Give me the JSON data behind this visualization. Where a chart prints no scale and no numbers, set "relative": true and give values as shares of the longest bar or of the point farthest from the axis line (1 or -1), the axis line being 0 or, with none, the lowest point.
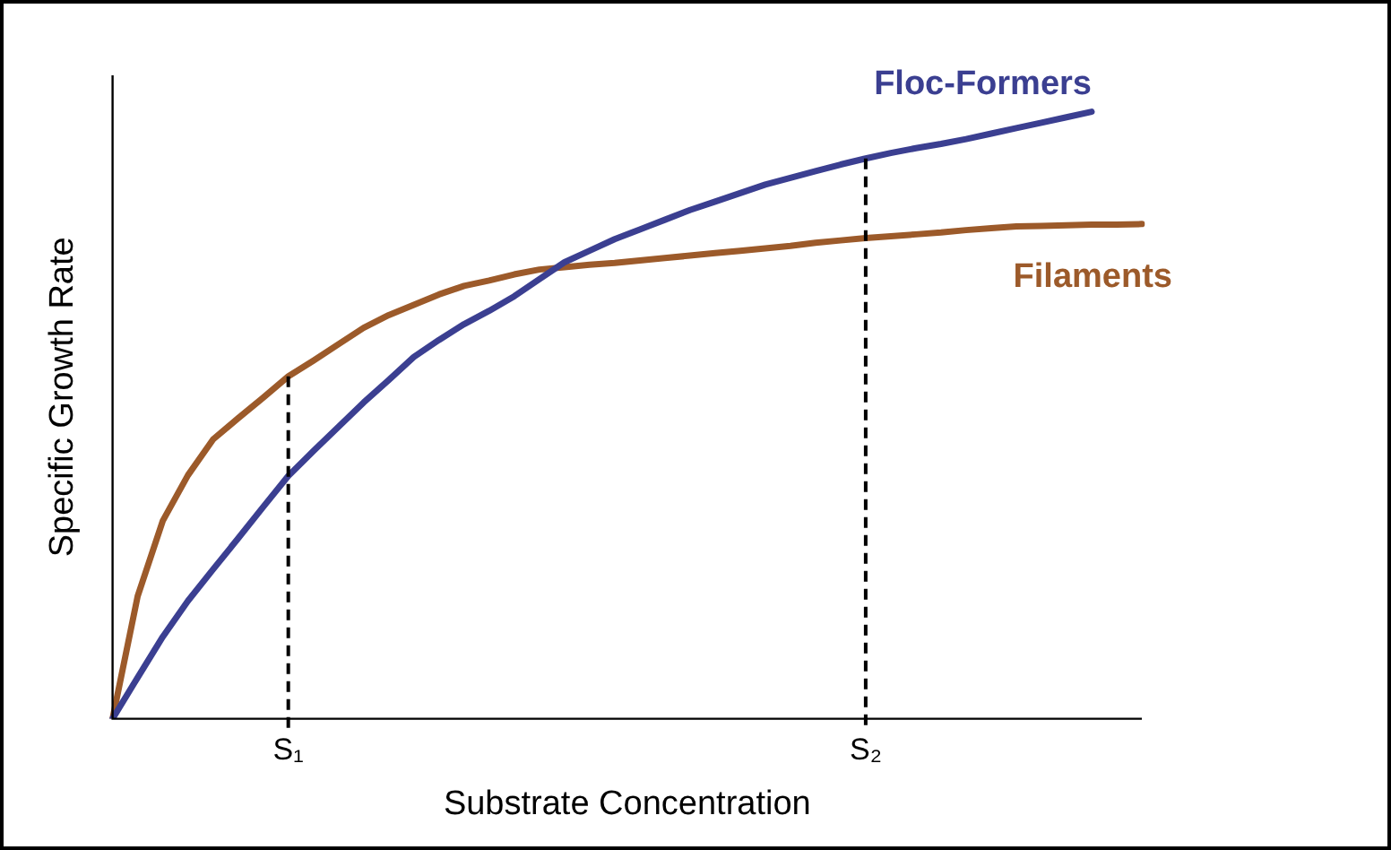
{
  "chart_data": {
    "type": "line",
    "relative": true,
    "xlabel": "Substrate Concentration",
    "ylabel": "Specific Growth Rate",
    "categories": [
      null,
      null,
      null,
      null,
      null,
      null,
      null,
      "S₁",
      null,
      null,
      null,
      null,
      null,
      null,
      null,
      null,
      null,
      null,
      null,
      null,
      null,
      null,
      null,
      null,
      null,
      null,
      null,
      null,
      null,
      null,
      "S₂",
      null,
      null,
      null,
      null,
      null,
      null,
      null,
      null,
      null,
      null,
      null
    ],
    "grid": false,
    "legend": false,
    "marker": "none",
    "line_style": "solid",
    "series": [
      {
        "name": "Floc-Formers",
        "color": "#3b3f91",
        "values": [
          0,
          0.068,
          0.135,
          0.194,
          0.246,
          0.297,
          0.349,
          0.4,
          0.441,
          0.481,
          0.521,
          0.558,
          0.596,
          0.624,
          0.65,
          0.672,
          0.696,
          0.724,
          0.752,
          0.771,
          0.79,
          0.806,
          0.822,
          0.838,
          0.852,
          0.866,
          0.88,
          0.891,
          0.902,
          0.913,
          0.923,
          0.932,
          0.94,
          0.947,
          0.955,
          0.964,
          0.973,
          0.982,
          0.991,
          1,
          null,
          null
        ]
      },
      {
        "name": "Filaments",
        "color": "#9c5a2a",
        "values": [
          0,
          0.202,
          0.326,
          0.401,
          0.46,
          0.495,
          0.529,
          0.564,
          0.59,
          0.617,
          0.644,
          0.665,
          0.682,
          0.699,
          0.713,
          0.722,
          0.732,
          0.74,
          0.744,
          0.748,
          0.751,
          0.755,
          0.759,
          0.763,
          0.767,
          0.771,
          0.775,
          0.779,
          0.784,
          0.788,
          0.792,
          0.795,
          0.798,
          0.801,
          0.805,
          0.808,
          0.811,
          0.812,
          0.813,
          0.814,
          0.814,
          0.815
        ]
      }
    ],
    "ref_lines": [
      {
        "axis": "x",
        "value": "S₁",
        "line_style": "dashed",
        "color": "#000000"
      },
      {
        "axis": "x",
        "value": "S₂",
        "line_style": "dashed",
        "color": "#000000"
      }
    ]
  }
}
